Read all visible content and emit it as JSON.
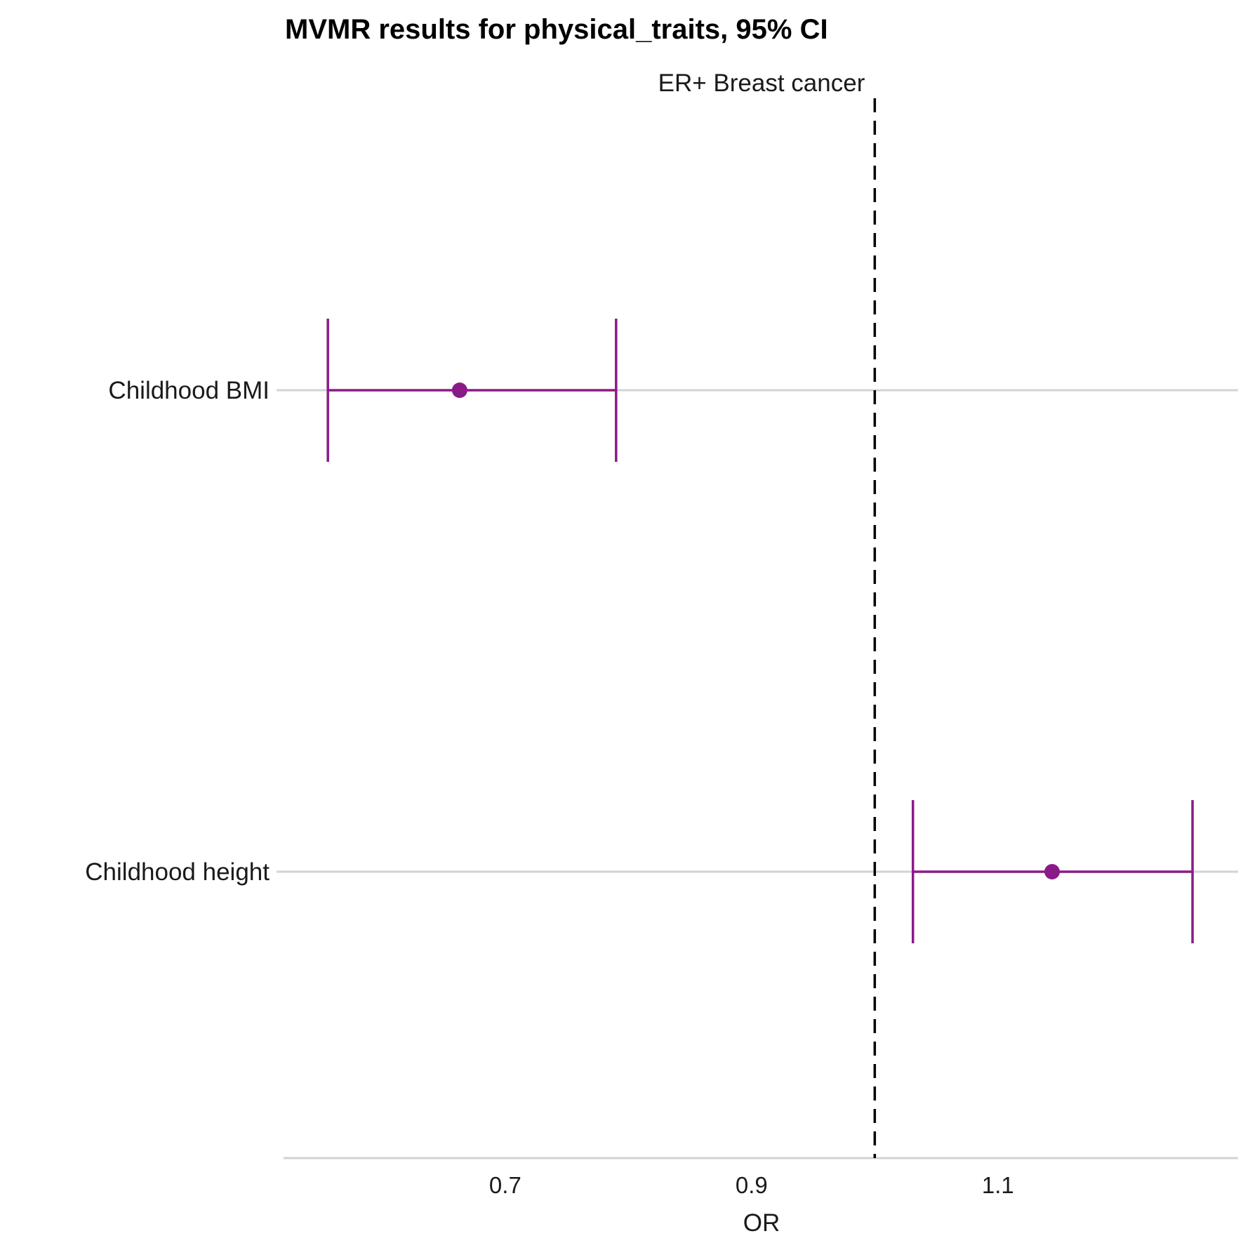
{
  "chart_data": {
    "type": "forest",
    "title": "MVMR results for physical_traits, 95% CI",
    "facet_label": "ER+ Breast cancer",
    "xlabel": "OR",
    "ylabel": "",
    "xlim": [
      0.52,
      1.295
    ],
    "x_ticks": [
      0.7,
      0.9,
      1.1
    ],
    "x_tick_labels": [
      "0.7",
      "0.9",
      "1.1"
    ],
    "reference_line": 1.0,
    "categories": [
      "Childhood BMI",
      "Childhood height"
    ],
    "estimates": [
      0.663,
      1.144
    ],
    "ci_lower": [
      0.556,
      1.031
    ],
    "ci_upper": [
      0.79,
      1.258
    ],
    "grid": "horizontal gridlines only",
    "colors": {
      "point": "#8b1a89",
      "gridline": "#d3d3d3",
      "reference": "#000000"
    }
  }
}
